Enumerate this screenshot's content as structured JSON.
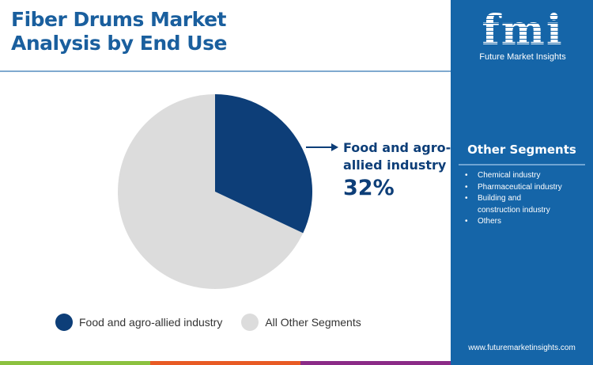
{
  "title_line1": "Fiber Drums Market",
  "title_line2": "Analysis by End Use",
  "brand": {
    "logo": "fmi",
    "name": "Future Market Insights",
    "url": "www.futuremarketinsights.com"
  },
  "other_segments": {
    "title": "Other Segments",
    "items": [
      "Chemical industry",
      "Pharmaceutical industry",
      "Building and construction industry",
      "Others"
    ]
  },
  "callout": {
    "label_line1": "Food and agro-",
    "label_line2": "allied industry",
    "value": "32%"
  },
  "colors": {
    "primary": "#0d3e78",
    "other": "#dcdcdc",
    "panel": "#1565a8",
    "bars": [
      "#8cc13f",
      "#e85a24",
      "#8b2b87",
      "#1565a8"
    ]
  },
  "chart_data": {
    "type": "pie",
    "title": "Fiber Drums Market Analysis by End Use",
    "legend_position": "bottom",
    "slices": [
      {
        "name": "Food and agro-allied industry",
        "value": 32,
        "color": "#0d3e78"
      },
      {
        "name": "All Other Segments",
        "value": 68,
        "color": "#dcdcdc"
      }
    ]
  }
}
